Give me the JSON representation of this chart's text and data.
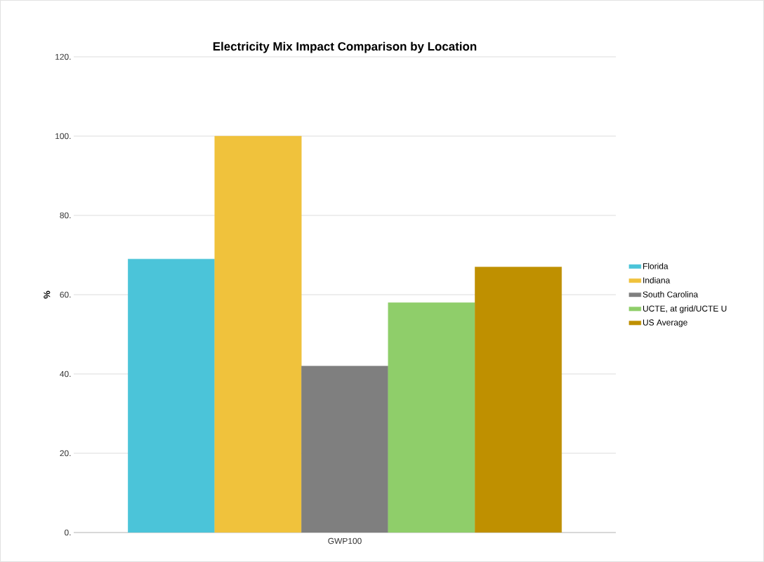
{
  "chart_data": {
    "type": "bar",
    "title": "Electricity Mix Impact Comparison by Location",
    "ylabel": "%",
    "categories": [
      "GWP100"
    ],
    "series": [
      {
        "name": "Florida",
        "color": "#4bc4d9",
        "values": [
          69
        ]
      },
      {
        "name": "Indiana",
        "color": "#f0c23c",
        "values": [
          100
        ]
      },
      {
        "name": "South Carolina",
        "color": "#7f7f7f",
        "values": [
          42
        ]
      },
      {
        "name": "UCTE, at grid/UCTE U",
        "color": "#8fce6a",
        "values": [
          58
        ]
      },
      {
        "name": "US Average",
        "color": "#bf9000",
        "values": [
          67
        ]
      }
    ],
    "ylim": [
      0,
      120
    ],
    "yticks": [
      {
        "value": 0,
        "label": "0."
      },
      {
        "value": 20,
        "label": "20."
      },
      {
        "value": 40,
        "label": "40."
      },
      {
        "value": 60,
        "label": "60."
      },
      {
        "value": 80,
        "label": "80."
      },
      {
        "value": 100,
        "label": "100."
      },
      {
        "value": 120,
        "label": "120."
      }
    ],
    "grid": "y",
    "legend": "right"
  }
}
